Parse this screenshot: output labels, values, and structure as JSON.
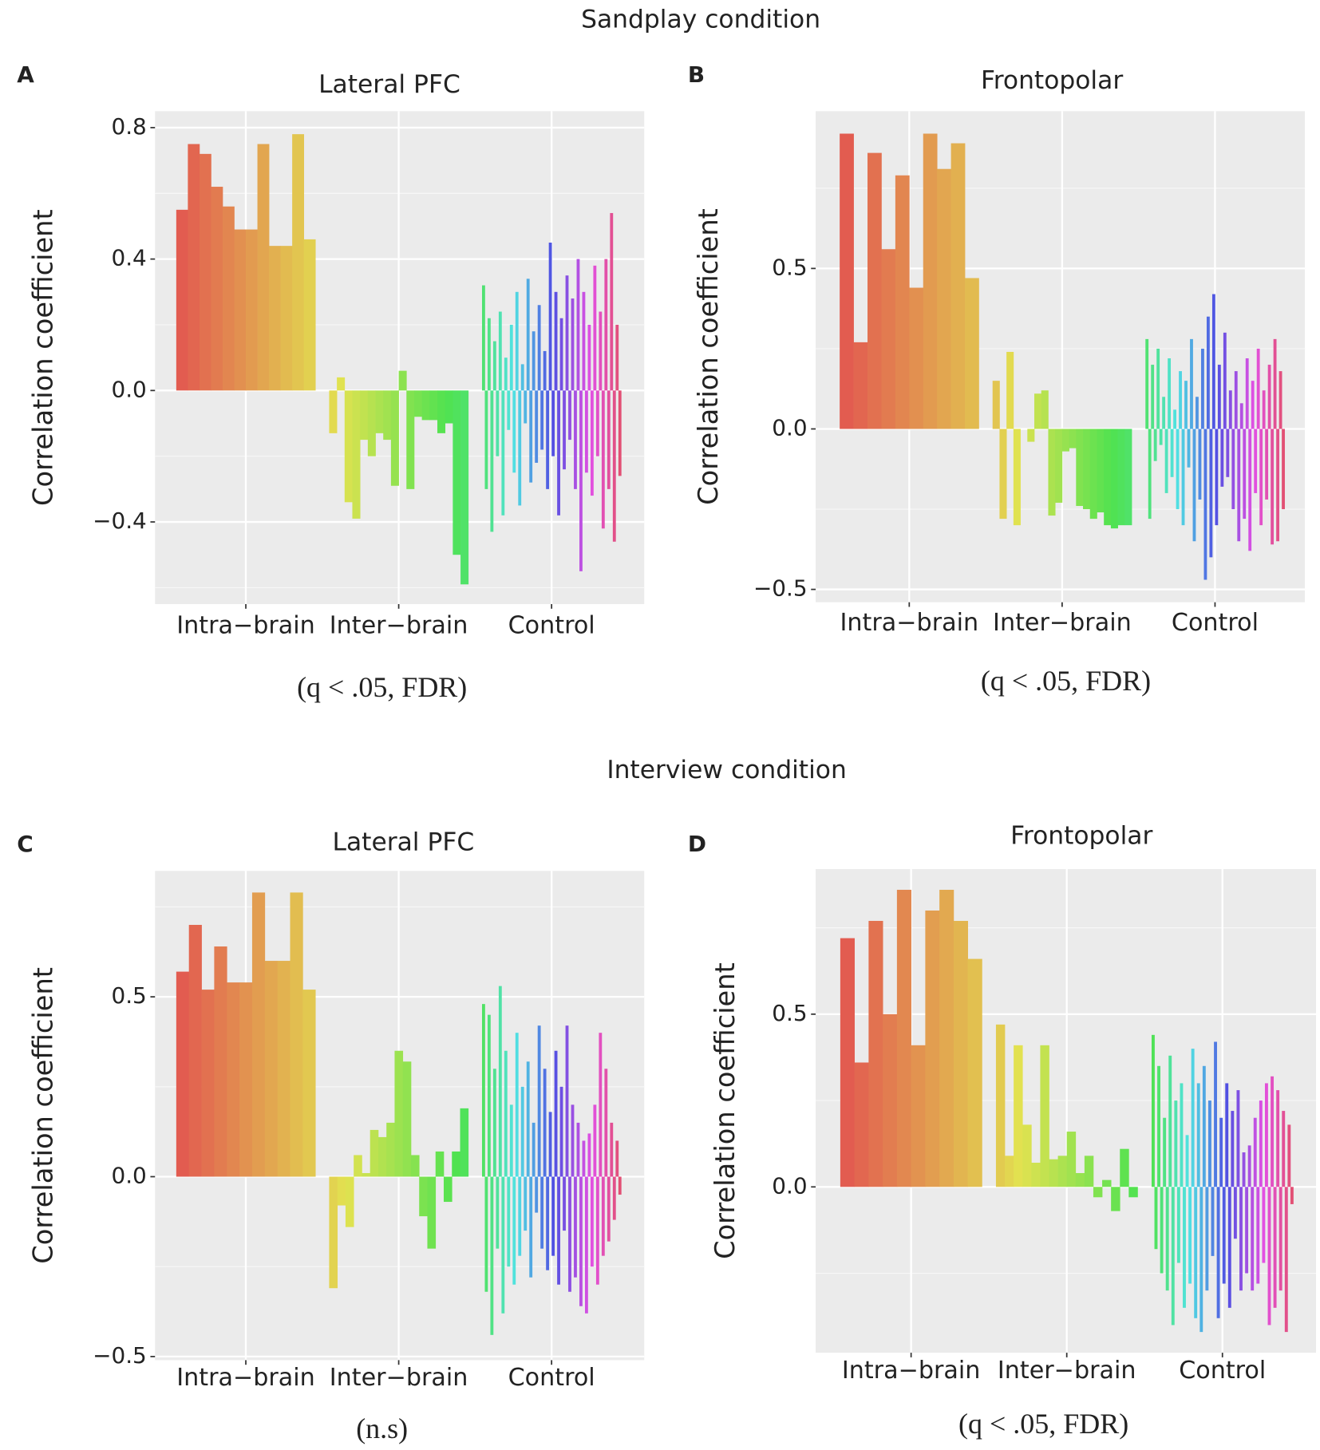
{
  "headings": [
    "Sandplay condition",
    "Interview condition"
  ],
  "chart_data": [
    {
      "type": "bar",
      "panel": "A",
      "title": "Lateral PFC",
      "ylabel": "Correlation coefficient",
      "note": "(q < .05, FDR)",
      "categories": [
        "Intra−brain",
        "Inter−brain",
        "Control"
      ],
      "groups": [
        {
          "values": [
            0.55,
            0.75,
            0.72,
            0.62,
            0.56,
            0.49,
            0.49,
            0.75,
            0.44,
            0.44,
            0.78,
            0.46
          ]
        },
        {
          "values": [
            -0.13,
            0.04,
            -0.34,
            -0.39,
            -0.15,
            -0.2,
            -0.13,
            -0.15,
            -0.29,
            0.06,
            -0.3,
            -0.08,
            -0.09,
            -0.09,
            -0.13,
            -0.1,
            -0.5,
            -0.59
          ]
        },
        {
          "values": [
            0.32,
            -0.3,
            0.22,
            -0.43,
            0.15,
            -0.2,
            0.24,
            -0.38,
            0.1,
            -0.12,
            0.2,
            -0.25,
            0.3,
            -0.35,
            0.08,
            -0.1,
            0.34,
            -0.28,
            0.18,
            -0.22,
            0.26,
            -0.18,
            0.12,
            -0.3,
            0.45,
            -0.2,
            0.3,
            -0.38,
            0.22,
            -0.24,
            0.35,
            -0.15,
            0.28,
            -0.3,
            0.4,
            -0.55,
            0.3,
            -0.25,
            0.2,
            -0.32,
            0.38,
            -0.2,
            0.24,
            -0.42,
            0.4,
            -0.3,
            0.54,
            -0.46,
            0.2,
            -0.26
          ]
        }
      ],
      "ylim": [
        -0.65,
        0.85
      ],
      "yticks": [
        {
          "value": -0.4,
          "label": "−0.4"
        },
        {
          "value": 0,
          "label": "0.0"
        },
        {
          "value": 0.4,
          "label": "0.4"
        },
        {
          "value": 0.8,
          "label": "0.8"
        }
      ],
      "yminor": [
        -0.6,
        -0.2,
        0.2,
        0.6
      ],
      "grid": true,
      "hue_range": [
        5,
        345
      ]
    },
    {
      "type": "bar",
      "panel": "B",
      "title": "Frontopolar",
      "ylabel": "Correlation coefficient",
      "note": "(q < .05, FDR)",
      "categories": [
        "Intra−brain",
        "Inter−brain",
        "Control"
      ],
      "groups": [
        {
          "values": [
            0.92,
            0.27,
            0.86,
            0.56,
            0.79,
            0.44,
            0.92,
            0.81,
            0.89,
            0.47
          ]
        },
        {
          "values": [
            0.15,
            -0.28,
            0.24,
            -0.3,
            0,
            -0.04,
            0.11,
            0.12,
            -0.27,
            -0.23,
            -0.07,
            -0.06,
            -0.24,
            -0.25,
            -0.28,
            -0.26,
            -0.3,
            -0.31,
            -0.3,
            -0.3
          ]
        },
        {
          "values": [
            0.28,
            -0.28,
            0.2,
            -0.1,
            0.25,
            -0.05,
            0.1,
            -0.2,
            0.22,
            -0.15,
            0.06,
            -0.25,
            0.18,
            -0.3,
            0.15,
            -0.12,
            0.28,
            -0.35,
            0.1,
            -0.22,
            0.25,
            -0.47,
            0.35,
            -0.4,
            0.42,
            -0.3,
            0.2,
            -0.18,
            0.3,
            -0.15,
            0.12,
            -0.25,
            0.18,
            -0.35,
            0.08,
            -0.28,
            0.22,
            -0.38,
            0.15,
            -0.2,
            0.25,
            -0.3,
            0.12,
            -0.22,
            0.2,
            -0.36,
            0.28,
            -0.35,
            0.18,
            -0.25
          ]
        }
      ],
      "ylim": [
        -0.54,
        0.99
      ],
      "yticks": [
        {
          "value": -0.5,
          "label": "−0.5"
        },
        {
          "value": 0,
          "label": "0.0"
        },
        {
          "value": 0.5,
          "label": "0.5"
        }
      ],
      "yminor": [
        -0.25,
        0.25,
        0.75
      ],
      "grid": true,
      "hue_range": [
        5,
        345
      ]
    },
    {
      "type": "bar",
      "panel": "C",
      "title": "Lateral PFC",
      "ylabel": "Correlation coefficient",
      "note": "(n.s)",
      "categories": [
        "Intra−brain",
        "Inter−brain",
        "Control"
      ],
      "groups": [
        {
          "values": [
            0.57,
            0.7,
            0.52,
            0.64,
            0.54,
            0.54,
            0.79,
            0.6,
            0.6,
            0.79,
            0.52
          ]
        },
        {
          "values": [
            -0.31,
            -0.08,
            -0.14,
            0.06,
            0.01,
            0.13,
            0.11,
            0.15,
            0.35,
            0.32,
            0.06,
            -0.11,
            -0.2,
            0.07,
            -0.07,
            0.07,
            0.19
          ]
        },
        {
          "values": [
            0.48,
            -0.32,
            0.45,
            -0.44,
            0.3,
            -0.2,
            0.53,
            -0.38,
            0.35,
            -0.25,
            0.2,
            -0.3,
            0.4,
            -0.22,
            0.25,
            -0.15,
            0.32,
            -0.28,
            0.15,
            -0.1,
            0.42,
            -0.2,
            0.3,
            -0.26,
            0.18,
            -0.22,
            0.35,
            -0.3,
            0.25,
            -0.15,
            0.42,
            -0.32,
            0.2,
            -0.28,
            0.15,
            -0.36,
            0.1,
            -0.38,
            0.12,
            -0.25,
            0.2,
            -0.3,
            0.4,
            -0.22,
            0.3,
            -0.18,
            0.15,
            -0.12,
            0.1,
            -0.05
          ]
        }
      ],
      "ylim": [
        -0.51,
        0.85
      ],
      "yticks": [
        {
          "value": -0.5,
          "label": "−0.5"
        },
        {
          "value": 0,
          "label": "0.0"
        },
        {
          "value": 0.5,
          "label": "0.5"
        }
      ],
      "yminor": [
        -0.25,
        0.25,
        0.75
      ],
      "grid": true,
      "hue_range": [
        5,
        345
      ]
    },
    {
      "type": "bar",
      "panel": "D",
      "title": "Frontopolar",
      "ylabel": "Correlation coefficient",
      "note": "(q < .05, FDR)",
      "categories": [
        "Intra−brain",
        "Inter−brain",
        "Control"
      ],
      "groups": [
        {
          "values": [
            0.72,
            0.36,
            0.77,
            0.5,
            0.86,
            0.41,
            0.8,
            0.86,
            0.77,
            0.66
          ]
        },
        {
          "values": [
            0.47,
            0.09,
            0.41,
            0.18,
            0.07,
            0.41,
            0.08,
            0.09,
            0.16,
            0.04,
            0.09,
            -0.03,
            0.02,
            -0.07,
            0.11,
            -0.03
          ]
        },
        {
          "values": [
            0.44,
            -0.18,
            0.35,
            -0.25,
            0.2,
            -0.3,
            0.38,
            -0.4,
            0.25,
            -0.22,
            0.3,
            -0.35,
            0.15,
            -0.28,
            0.4,
            -0.38,
            0.3,
            -0.42,
            0.35,
            -0.3,
            0.25,
            -0.2,
            0.42,
            -0.38,
            0.2,
            -0.28,
            0.3,
            -0.35,
            0.22,
            -0.15,
            0.28,
            -0.3,
            0.1,
            -0.25,
            0.12,
            -0.3,
            0.2,
            -0.28,
            0.25,
            -0.22,
            0.3,
            -0.4,
            0.32,
            -0.35,
            0.28,
            -0.3,
            0.22,
            -0.42,
            0.18,
            -0.05
          ]
        }
      ],
      "ylim": [
        -0.48,
        0.92
      ],
      "yticks": [
        {
          "value": 0,
          "label": "0.0"
        },
        {
          "value": 0.5,
          "label": "0.5"
        }
      ],
      "yminor": [
        -0.25,
        0.25,
        0.75
      ],
      "grid": true,
      "hue_range": [
        5,
        345
      ]
    }
  ]
}
